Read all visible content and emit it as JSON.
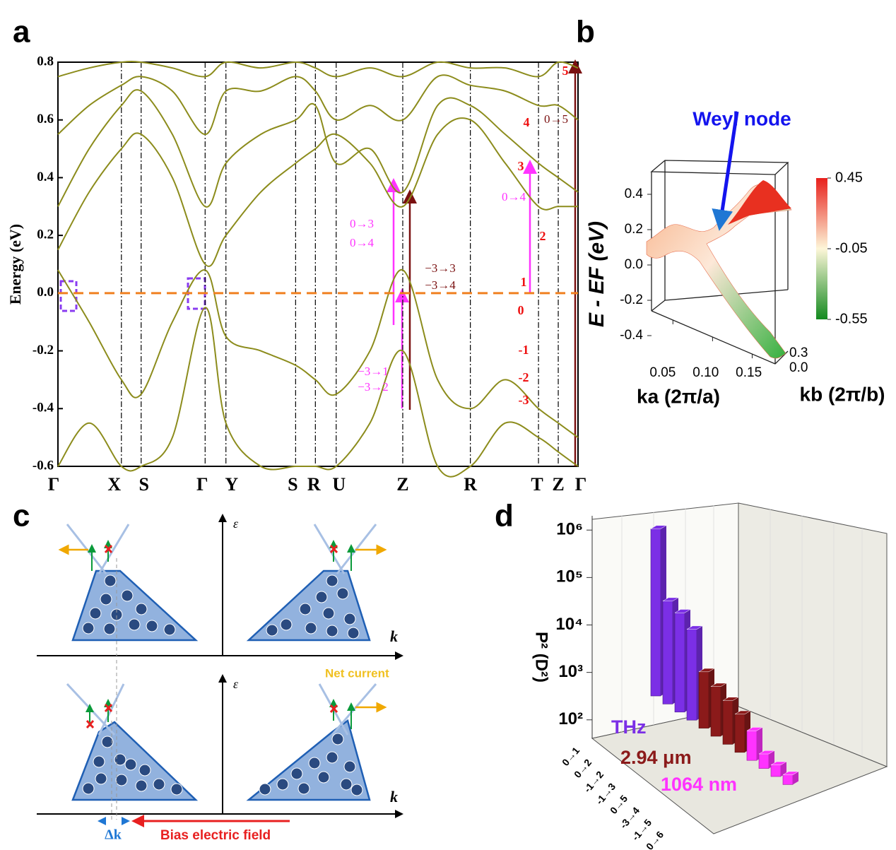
{
  "panel_labels": [
    "a",
    "b",
    "c",
    "d"
  ],
  "chart_data": [
    {
      "type": "line",
      "ylabel": "Energy (eV)",
      "ylim": [
        -0.6,
        0.8
      ],
      "yticks": [
        -0.6,
        -0.4,
        -0.2,
        {
          "value": 0,
          "label": "0.0"
        },
        0.2,
        0.4,
        0.6,
        0.8
      ],
      "xlim": [
        0,
        1
      ],
      "xticks": [
        {
          "value": 0,
          "label": "Γ"
        },
        {
          "value": 0.122,
          "label": "X"
        },
        {
          "value": 0.16,
          "label": "S"
        },
        {
          "value": 0.283,
          "label": "Γ"
        },
        {
          "value": 0.323,
          "label": "Y"
        },
        {
          "value": 0.457,
          "label": "S"
        },
        {
          "value": 0.495,
          "label": "R"
        },
        {
          "value": 0.535,
          "label": "U"
        },
        {
          "value": 0.663,
          "label": "Z"
        },
        {
          "value": 0.793,
          "label": "R"
        },
        {
          "value": 0.924,
          "label": "T"
        },
        {
          "value": 0.962,
          "label": "Z"
        },
        {
          "value": 1,
          "label": "Γ"
        }
      ],
      "x": [
        0,
        0.06,
        0.122,
        0.16,
        0.22,
        0.283,
        0.323,
        0.39,
        0.457,
        0.495,
        0.535,
        0.6,
        0.663,
        0.73,
        0.793,
        0.86,
        0.924,
        0.962,
        1
      ],
      "series": [
        {
          "color": "#8c8c1c",
          "values": [
            -0.6,
            -0.45,
            -0.6,
            -0.6,
            -0.5,
            -0.05,
            -0.45,
            -0.6,
            -0.6,
            -0.6,
            -0.6,
            -0.45,
            -0.2,
            -0.6,
            -0.6,
            -0.45,
            -0.5,
            -0.55,
            -0.6
          ]
        },
        {
          "color": "#8c8c1c",
          "values": [
            0.08,
            -0.1,
            -0.3,
            -0.35,
            -0.1,
            0.08,
            -0.15,
            -0.2,
            -0.25,
            -0.3,
            -0.35,
            -0.2,
            0.08,
            -0.3,
            -0.4,
            -0.3,
            -0.4,
            -0.45,
            -0.5
          ]
        },
        {
          "color": "#8c8c1c",
          "values": [
            0.15,
            0.35,
            0.5,
            0.55,
            0.4,
            0.1,
            0.2,
            0.35,
            0.45,
            0.5,
            0.55,
            0.45,
            0.3,
            0.55,
            0.6,
            0.45,
            0.3,
            0.3,
            0.3
          ]
        },
        {
          "color": "#8c8c1c",
          "values": [
            0.3,
            0.5,
            0.65,
            0.7,
            0.55,
            0.3,
            0.45,
            0.55,
            0.6,
            0.65,
            0.45,
            0.5,
            0.35,
            0.65,
            0.65,
            0.55,
            0.45,
            0.4,
            0.35
          ]
        },
        {
          "color": "#8c8c1c",
          "values": [
            0.55,
            0.65,
            0.72,
            0.75,
            0.7,
            0.55,
            0.7,
            0.7,
            0.75,
            0.7,
            0.6,
            0.65,
            0.6,
            0.75,
            0.72,
            0.7,
            0.65,
            0.65,
            0.6
          ]
        },
        {
          "color": "#8c8c1c",
          "values": [
            0.75,
            0.78,
            0.8,
            0.8,
            0.78,
            0.75,
            0.8,
            0.78,
            0.8,
            0.78,
            0.75,
            0.78,
            0.75,
            0.8,
            0.78,
            0.78,
            0.75,
            0.8,
            0.78
          ]
        }
      ],
      "fermi_level": 0,
      "fermi_color": "#f08020",
      "annotations": [
        {
          "text": "0→3",
          "color": "#ff33ff"
        },
        {
          "text": "0→4",
          "color": "#ff33ff"
        },
        {
          "text": "−3→3",
          "color": "#7a1010"
        },
        {
          "text": "−3→4",
          "color": "#7a1010"
        },
        {
          "text": "−3→1",
          "color": "#ff33ff"
        },
        {
          "text": "−3→2",
          "color": "#ff33ff"
        },
        {
          "text": "0→4",
          "color": "#ff33ff"
        },
        {
          "text": "0→5",
          "color": "#7a1010"
        }
      ],
      "band_labels": [
        5,
        4,
        3,
        2,
        1,
        0,
        -1,
        -2,
        -3
      ],
      "band_label_color": "#ee1111"
    },
    {
      "type": "surface",
      "annotation": "Weyl node",
      "zlabel": "E - EF (eV)",
      "xlabel": "ka (2π/a)",
      "ylabel": "kb (2π/b)",
      "zlim": [
        -0.48,
        0.54
      ],
      "zticks": [
        0.4,
        0.2,
        {
          "value": 0,
          "label": "0.0"
        },
        -0.2,
        -0.4
      ],
      "xlim": [
        0.023,
        0.179
      ],
      "xticks": [
        0.05,
        {
          "value": 0.1,
          "label": "0.10"
        },
        0.15
      ],
      "ylim": [
        -0.05,
        0.35
      ],
      "yticks": [
        0.3,
        {
          "value": 0,
          "label": "0.0"
        }
      ],
      "clim": [
        -0.55,
        0.45
      ],
      "cticks": [
        0.45,
        -0.05,
        -0.55
      ]
    },
    {
      "type": "bar3d",
      "log_y": true,
      "ylabel": "P² (D²)",
      "ylim": [
        50,
        2000000
      ],
      "yticks": [
        {
          "value": 100,
          "label": "10²"
        },
        {
          "value": 1000,
          "label": "10³"
        },
        {
          "value": 10000,
          "label": "10⁴"
        },
        {
          "value": 100000,
          "label": "10⁵"
        },
        {
          "value": 1000000,
          "label": "10⁶"
        }
      ],
      "xtick_labels": [
        "0→1",
        "0→2",
        "-1→2",
        "-1→3",
        "0→5",
        "-3→4",
        "-1→5",
        "0→6"
      ],
      "series": [
        {
          "name": "THz",
          "color": "#7b2fe6",
          "values": [
            1200000,
            25000,
            20000,
            12000
          ]
        },
        {
          "name": "2.94 μm",
          "color": "#8b1a1a",
          "values": [
            1500,
            1000,
            700,
            500
          ]
        },
        {
          "name": "1064 nm",
          "color": "#ff33ff",
          "values": [
            300,
            120,
            100,
            90
          ]
        }
      ]
    }
  ],
  "diagram_c": {
    "energy_axis": "ε",
    "energy_axis_2": "ε",
    "k_axis": "k",
    "k_axis_2": "k",
    "net_current": "Net current",
    "delta_k": "Δk",
    "bias_field": "Bias electric field"
  }
}
